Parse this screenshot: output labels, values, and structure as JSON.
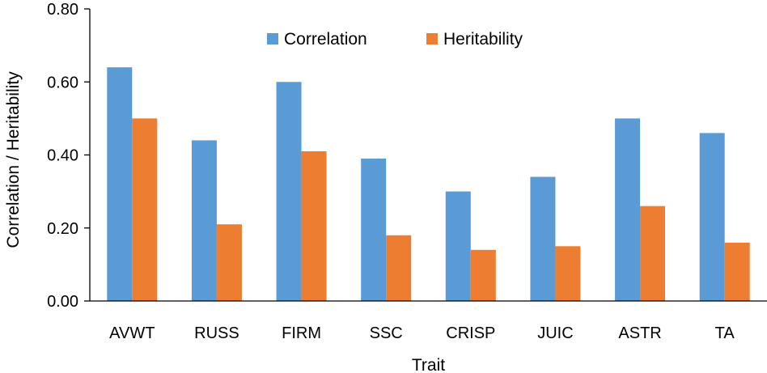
{
  "chart_data": {
    "type": "bar",
    "title": "",
    "xlabel": "Trait",
    "ylabel": "Correlation / Heritability",
    "categories": [
      "AVWT",
      "RUSS",
      "FIRM",
      "SSC",
      "CRISP",
      "JUIC",
      "ASTR",
      "TA"
    ],
    "series": [
      {
        "name": "Correlation",
        "color": "#5B9BD5",
        "values": [
          0.64,
          0.44,
          0.6,
          0.39,
          0.3,
          0.34,
          0.5,
          0.46
        ]
      },
      {
        "name": "Heritability",
        "color": "#ED7D31",
        "values": [
          0.5,
          0.21,
          0.41,
          0.18,
          0.14,
          0.15,
          0.26,
          0.16
        ]
      }
    ],
    "ylim": [
      0,
      0.8
    ],
    "yticks": [
      "0.00",
      "0.20",
      "0.40",
      "0.60",
      "0.80"
    ],
    "grid": false,
    "legend_position": "top-center"
  }
}
